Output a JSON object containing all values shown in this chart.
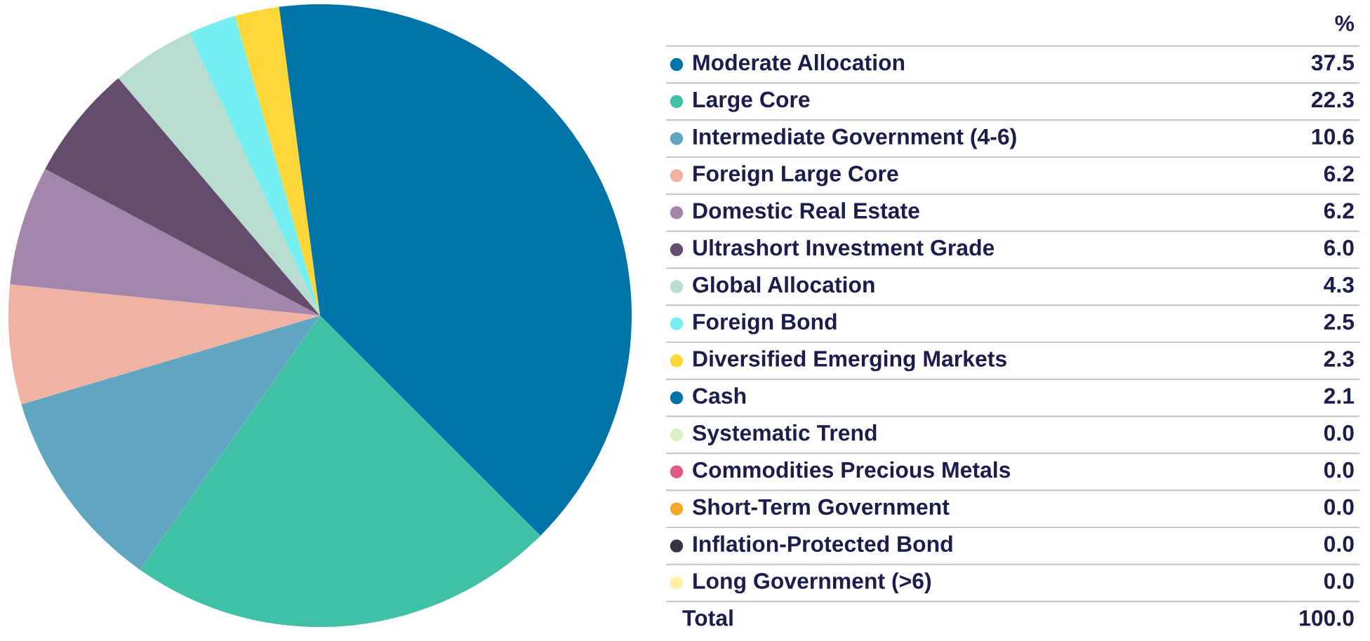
{
  "chart_data": {
    "type": "pie",
    "categories": [
      "Moderate Allocation",
      "Large Core",
      "Intermediate Government (4-6)",
      "Foreign Large Core",
      "Domestic Real Estate",
      "Ultrashort Investment Grade",
      "Global Allocation",
      "Foreign Bond",
      "Diversified Emerging Markets",
      "Cash",
      "Systematic Trend",
      "Commodities Precious Metals",
      "Short-Term Government",
      "Inflation-Protected Bond",
      "Long Government (>6)"
    ],
    "values": [
      37.5,
      22.3,
      10.6,
      6.2,
      6.2,
      6.0,
      4.3,
      2.5,
      2.3,
      2.1,
      0.0,
      0.0,
      0.0,
      0.0,
      0.0
    ],
    "value_labels": [
      "37.5",
      "22.3",
      "10.6",
      "6.2",
      "6.2",
      "6.0",
      "4.3",
      "2.5",
      "2.3",
      "2.1",
      "0.0",
      "0.0",
      "0.0",
      "0.0",
      "0.0"
    ],
    "colors": [
      "#0073a8",
      "#40c0a4",
      "#60a6c0",
      "#f0b2a2",
      "#a486aa",
      "#634c6c",
      "#b8dccf",
      "#76eef2",
      "#fdd838",
      "#0073a8",
      "#d9f0c8",
      "#e05a88",
      "#f5a82a",
      "#333344",
      "#fff0a4"
    ],
    "legend_title": "%",
    "legend": "right",
    "annotations": [
      "Total"
    ],
    "totals": [
      "100.0"
    ]
  }
}
